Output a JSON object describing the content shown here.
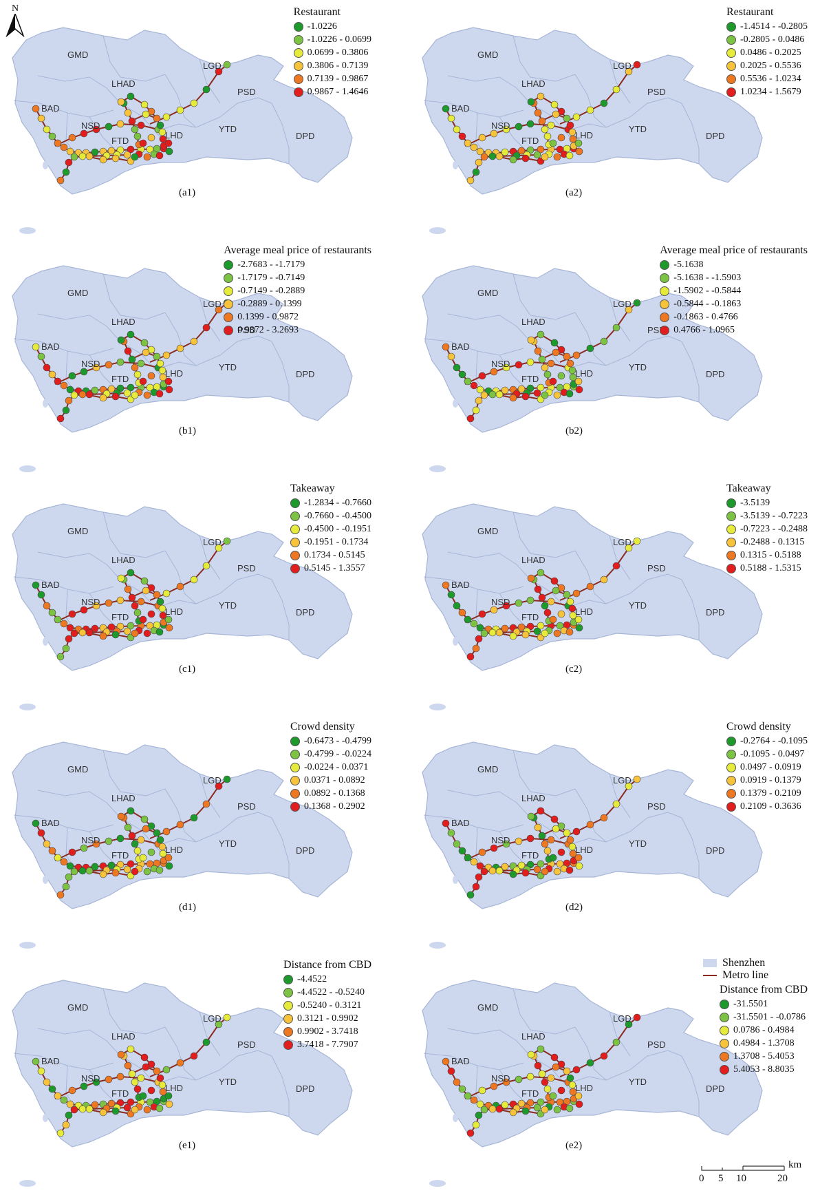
{
  "north_label": "N",
  "districts": [
    "GMD",
    "LHAD",
    "LGD",
    "BAD",
    "NSD",
    "PSD",
    "FTD",
    "LHD",
    "YTD",
    "DPD"
  ],
  "class_colors": [
    "#1e9a2c",
    "#7cc243",
    "#e6ea3a",
    "#f6c33a",
    "#ee7722",
    "#e21d1d"
  ],
  "colors": {
    "land": "#cdd8ef",
    "boundary": "#a7b6d6",
    "metro": "#8b2a1e"
  },
  "panels": [
    {
      "caption": "(a1)",
      "title": "Restaurant",
      "classes": [
        "-1.0226",
        "-1.0226 - 0.0699",
        "0.0699 - 0.3806",
        "0.3806 - 0.7139",
        "0.7139 - 0.9867",
        "0.9867 - 1.4646"
      ]
    },
    {
      "caption": "(a2)",
      "title": "Restaurant",
      "classes": [
        "-1.4514 - -0.2805",
        "-0.2805 - 0.0486",
        "0.0486 - 0.2025",
        "0.2025 - 0.5536",
        "0.5536 - 1.0234",
        "1.0234 - 1.5679"
      ]
    },
    {
      "caption": "(b1)",
      "title": "Average meal price of restaurants",
      "classes": [
        "-2.7683 - -1.7179",
        "-1.7179 - -0.7149",
        "-0.7149 - -0.2889",
        "-0.2889 - 0.1399",
        "0.1399 - 0.9872",
        "0.9872 - 3.2693"
      ]
    },
    {
      "caption": "(b2)",
      "title": "Average meal price of restaurants",
      "classes": [
        "-5.1638",
        "-5.1638 - -1.5903",
        "-1.5902 - -0.5844",
        "-0.5844 - -0.1863",
        "-0.1863 - 0.4766",
        "0.4766 - 1.0965"
      ]
    },
    {
      "caption": "(c1)",
      "title": "Takeaway",
      "classes": [
        "-1.2834 - -0.7660",
        "-0.7660 - -0.4500",
        "-0.4500 - -0.1951",
        "-0.1951 - 0.1734",
        "0.1734 - 0.5145",
        "0.5145 - 1.3557"
      ]
    },
    {
      "caption": "(c2)",
      "title": "Takeaway",
      "classes": [
        "-3.5139",
        "-3.5139 - -0.7223",
        "-0.7223 - -0.2488",
        "-0.2488 - 0.1315",
        "0.1315 - 0.5188",
        "0.5188 - 1.5315"
      ]
    },
    {
      "caption": "(d1)",
      "title": "Crowd density",
      "classes": [
        "-0.6473 - -0.4799",
        "-0.4799 - -0.0224",
        "-0.0224 - 0.0371",
        "0.0371 - 0.0892",
        "0.0892 - 0.1368",
        "0.1368 - 0.2902"
      ]
    },
    {
      "caption": "(d2)",
      "title": "Crowd density",
      "classes": [
        "-0.2764 - -0.1095",
        "-0.1095 - 0.0497",
        "0.0497 - 0.0919",
        "0.0919 - 0.1379",
        "0.1379 - 0.2109",
        "0.2109 - 0.3636"
      ]
    },
    {
      "caption": "(e1)",
      "title": "Distance from CBD",
      "classes": [
        "-4.4522",
        "-4.4522 - -0.5240",
        "-0.5240 - 0.3121",
        "0.3121 - 0.9902",
        "0.9902 - 3.7418",
        "3.7418 - 7.7907"
      ]
    },
    {
      "caption": "(e2)",
      "title": "Distance from CBD",
      "classes": [
        "-31.5501",
        "-31.5501 - -0.0786",
        "0.0786 - 0.4984",
        "0.4984 - 1.3708",
        "1.3708 - 5.4053",
        "5.4053 - 8.8035"
      ]
    }
  ],
  "base_legend": {
    "land": "Shenzhen",
    "metro": "Metro line"
  },
  "scale": {
    "unit": "km",
    "ticks": [
      "0",
      "5",
      "10",
      "20"
    ]
  }
}
